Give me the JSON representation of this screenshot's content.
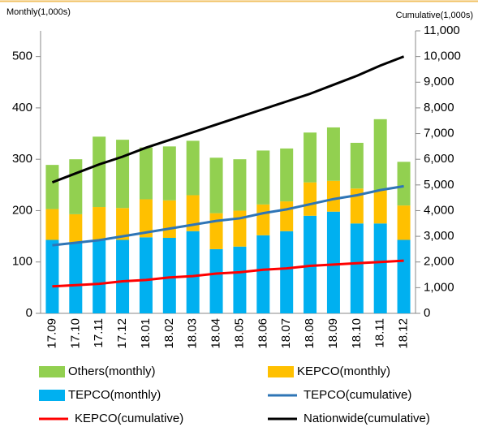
{
  "chart_data": {
    "type": "bar+line",
    "y_label": "Monthly(1,000s)",
    "y2_label": "Cumulative(1,000s)",
    "categories": [
      "17.09",
      "17.10",
      "17.11",
      "17.12",
      "18.01",
      "18.02",
      "18.03",
      "18.04",
      "18.05",
      "18.06",
      "18.07",
      "18.08",
      "18.09",
      "18.10",
      "18.11",
      "18.12"
    ],
    "series": [
      {
        "name": "TEPCO(monthly)",
        "type": "bar",
        "color": "#00b0f0",
        "values": [
          143,
          138,
          143,
          143,
          148,
          147,
          160,
          125,
          130,
          152,
          160,
          190,
          198,
          175,
          175,
          143
        ]
      },
      {
        "name": "KEPCO(monthly)",
        "type": "bar",
        "color": "#ffc000",
        "values": [
          60,
          55,
          64,
          62,
          74,
          73,
          70,
          70,
          70,
          60,
          58,
          65,
          60,
          68,
          65,
          67
        ]
      },
      {
        "name": "Others(monthly)",
        "type": "bar",
        "color": "#92d050",
        "values": [
          86,
          107,
          137,
          133,
          101,
          105,
          106,
          108,
          100,
          105,
          103,
          97,
          104,
          89,
          138,
          85
        ]
      },
      {
        "name": "TEPCO(cumulative)",
        "type": "line",
        "axis": "y2",
        "color": "#2e75b6",
        "values": [
          2650,
          2750,
          2850,
          3000,
          3150,
          3300,
          3450,
          3600,
          3700,
          3900,
          4050,
          4250,
          4450,
          4600,
          4800,
          4950
        ]
      },
      {
        "name": "KEPCO(cumulative)",
        "type": "line",
        "axis": "y2",
        "color": "#ff0000",
        "values": [
          1050,
          1100,
          1150,
          1250,
          1300,
          1400,
          1450,
          1550,
          1600,
          1700,
          1750,
          1850,
          1900,
          1950,
          2000,
          2050
        ]
      },
      {
        "name": "Nationwide(cumulative)",
        "type": "line",
        "axis": "y2",
        "color": "#000000",
        "values": [
          5100,
          5450,
          5800,
          6100,
          6450,
          6750,
          7050,
          7350,
          7650,
          7950,
          8250,
          8550,
          8900,
          9250,
          9650,
          10000
        ]
      }
    ],
    "ylim": [
      0,
      550
    ],
    "yticks": [
      0,
      100,
      200,
      300,
      400,
      500
    ],
    "y2lim": [
      0,
      11000
    ],
    "y2ticks": [
      0,
      {
        "value": 1000,
        "label": "1,000"
      },
      {
        "value": 2000,
        "label": "2,000"
      },
      {
        "value": 3000,
        "label": "3,000"
      },
      {
        "value": 4000,
        "label": "4,000"
      },
      {
        "value": 5000,
        "label": "5,000"
      },
      {
        "value": 6000,
        "label": "6,000"
      },
      {
        "value": 7000,
        "label": "7,000"
      },
      {
        "value": 8000,
        "label": "8,000"
      },
      {
        "value": 9000,
        "label": "9,000"
      },
      {
        "value": 10000,
        "label": "10,000"
      },
      {
        "value": 11000,
        "label": "11,000"
      }
    ],
    "stacked": true
  }
}
